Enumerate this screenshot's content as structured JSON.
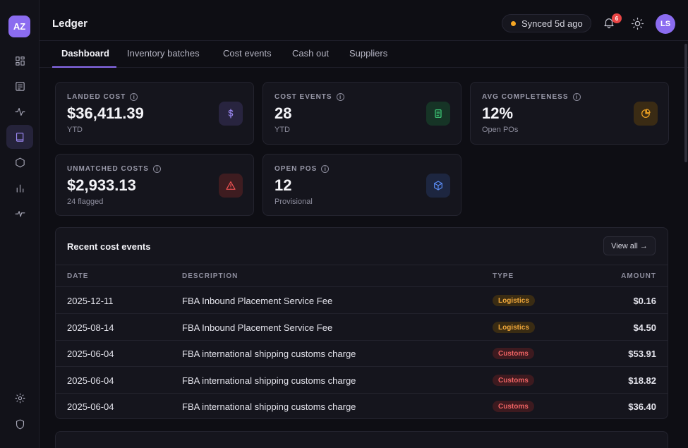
{
  "sidebar": {
    "logo": "AZ",
    "nav_icons": [
      "grid-icon",
      "document-icon",
      "activity-icon",
      "book-icon",
      "box-icon",
      "bar-chart-icon",
      "pulse-icon"
    ],
    "bottom_icons": [
      "gear-icon",
      "shield-icon"
    ]
  },
  "header": {
    "title": "Ledger",
    "sync_status": "Synced 5d ago",
    "notification_count": "6",
    "avatar_initials": "LS"
  },
  "tabs": [
    {
      "label": "Dashboard"
    },
    {
      "label": "Inventory batches"
    },
    {
      "label": "Cost events"
    },
    {
      "label": "Cash out"
    },
    {
      "label": "Suppliers"
    }
  ],
  "kpis": [
    {
      "label": "LANDED COST",
      "value": "$36,411.39",
      "sub": "YTD",
      "icon": "dollar-icon",
      "color": "#9b88f2"
    },
    {
      "label": "COST EVENTS",
      "value": "28",
      "sub": "YTD",
      "icon": "receipt-icon",
      "color": "#3fcf7a"
    },
    {
      "label": "AVG COMPLETENESS",
      "value": "12%",
      "sub": "Open POs",
      "icon": "pie-icon",
      "color": "#f5a623"
    },
    {
      "label": "UNMATCHED COSTS",
      "value": "$2,933.13",
      "sub": "24 flagged",
      "icon": "warning-icon",
      "color": "#f05252"
    },
    {
      "label": "OPEN POS",
      "value": "12",
      "sub": "Provisional",
      "icon": "cube-icon",
      "color": "#5b8cf5"
    }
  ],
  "recent": {
    "title": "Recent cost events",
    "view_all": "View all →",
    "columns": {
      "date": "DATE",
      "description": "DESCRIPTION",
      "type": "TYPE",
      "amount": "AMOUNT"
    },
    "rows": [
      {
        "date": "2025-12-11",
        "description": "FBA Inbound Placement Service Fee",
        "type": "Logistics",
        "amount": "$0.16"
      },
      {
        "date": "2025-08-14",
        "description": "FBA Inbound Placement Service Fee",
        "type": "Logistics",
        "amount": "$4.50"
      },
      {
        "date": "2025-06-04",
        "description": "FBA international shipping customs charge",
        "type": "Customs",
        "amount": "$53.91"
      },
      {
        "date": "2025-06-04",
        "description": "FBA international shipping customs charge",
        "type": "Customs",
        "amount": "$18.82"
      },
      {
        "date": "2025-06-04",
        "description": "FBA international shipping customs charge",
        "type": "Customs",
        "amount": "$36.40"
      }
    ]
  }
}
